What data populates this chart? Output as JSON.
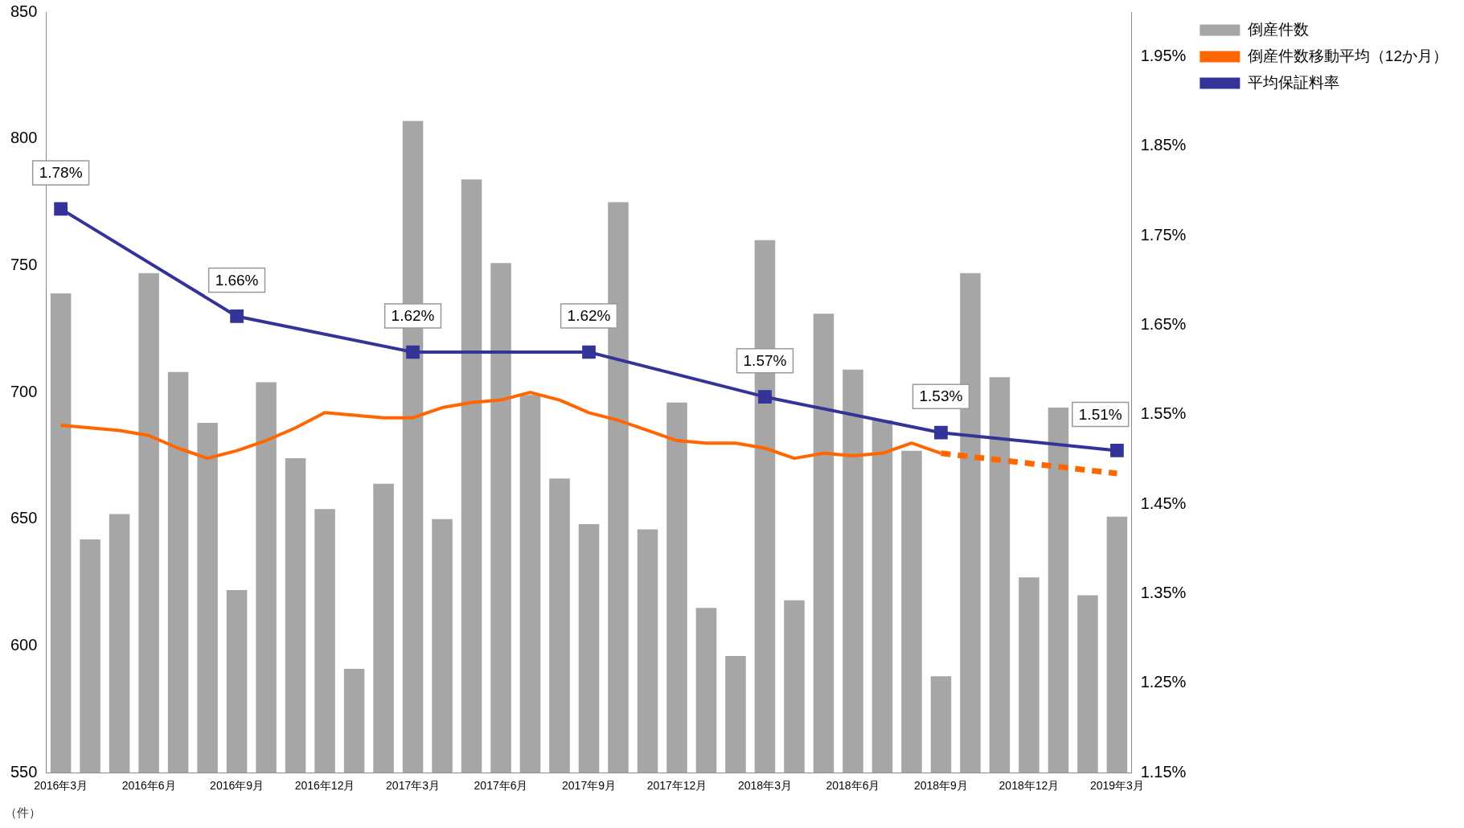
{
  "chart_data": {
    "type": "bar",
    "ylabel": "（件）",
    "categories": [
      "2016年3月",
      null,
      null,
      "2016年6月",
      null,
      null,
      "2016年9月",
      null,
      null,
      "2016年12月",
      null,
      null,
      "2017年3月",
      null,
      null,
      "2017年6月",
      null,
      null,
      "2017年9月",
      null,
      null,
      "2017年12月",
      null,
      null,
      "2018年3月",
      null,
      null,
      "2018年6月",
      null,
      null,
      "2018年9月",
      null,
      null,
      "2018年12月",
      null,
      null,
      "2019年3月"
    ],
    "series": [
      {
        "name": "倒産件数",
        "color": "#a6a6a6",
        "values": [
          739,
          642,
          652,
          747,
          708,
          688,
          622,
          704,
          674,
          654,
          591,
          664,
          807,
          650,
          784,
          751,
          699,
          666,
          648,
          775,
          646,
          696,
          615,
          596,
          760,
          618,
          731,
          709,
          689,
          677,
          588,
          747,
          706,
          627,
          694,
          620,
          651
        ]
      },
      {
        "name": "倒産件数移動平均（12か月）",
        "type": "line",
        "color": "#ff6600",
        "marker": "none",
        "line_style": "solid",
        "values": [
          687,
          686,
          685,
          683,
          678,
          674,
          677,
          681,
          686,
          692,
          691,
          690,
          690,
          694,
          696,
          697,
          700,
          697,
          692,
          689,
          685,
          681,
          680,
          680,
          678,
          674,
          676,
          675,
          676,
          680,
          676,
          null,
          null,
          null,
          null,
          null,
          null
        ]
      },
      {
        "type": "line",
        "color": "#ff6600",
        "marker": "none",
        "line_style": "dashed",
        "values": [
          null,
          null,
          null,
          null,
          null,
          null,
          null,
          null,
          null,
          null,
          null,
          null,
          null,
          null,
          null,
          null,
          null,
          null,
          null,
          null,
          null,
          null,
          null,
          null,
          null,
          null,
          null,
          null,
          null,
          null,
          676,
          null,
          null,
          null,
          null,
          null,
          668
        ]
      },
      {
        "name": "平均保証料率",
        "type": "line",
        "axis": "y2",
        "color": "#333399",
        "marker": "square",
        "line_style": "solid",
        "values": [
          1.78,
          null,
          null,
          null,
          null,
          null,
          1.66,
          null,
          null,
          null,
          null,
          null,
          1.62,
          null,
          null,
          null,
          null,
          null,
          1.62,
          null,
          null,
          null,
          null,
          null,
          1.57,
          null,
          null,
          null,
          null,
          null,
          1.53,
          null,
          null,
          null,
          null,
          null,
          1.51
        ],
        "value_labels": [
          "1.78%",
          null,
          null,
          null,
          null,
          null,
          "1.66%",
          null,
          null,
          null,
          null,
          null,
          "1.62%",
          null,
          null,
          null,
          null,
          null,
          "1.62%",
          null,
          null,
          null,
          null,
          null,
          "1.57%",
          null,
          null,
          null,
          null,
          null,
          "1.53%",
          null,
          null,
          null,
          null,
          null,
          "1.51%"
        ]
      }
    ],
    "ylim": [
      550,
      850
    ],
    "yticks": [
      550,
      600,
      650,
      700,
      750,
      800,
      850
    ],
    "y2lim": [
      1.15,
      2.0
    ],
    "y2ticks": [
      {
        "value": 1.15,
        "label": "1.15%"
      },
      {
        "value": 1.25,
        "label": "1.25%"
      },
      {
        "value": 1.35,
        "label": "1.35%"
      },
      {
        "value": 1.45,
        "label": "1.45%"
      },
      {
        "value": 1.55,
        "label": "1.55%"
      },
      {
        "value": 1.65,
        "label": "1.65%"
      },
      {
        "value": 1.75,
        "label": "1.75%"
      },
      {
        "value": 1.85,
        "label": "1.85%"
      },
      {
        "value": 1.95,
        "label": "1.95%"
      }
    ],
    "grid": false,
    "legend": "top right"
  }
}
